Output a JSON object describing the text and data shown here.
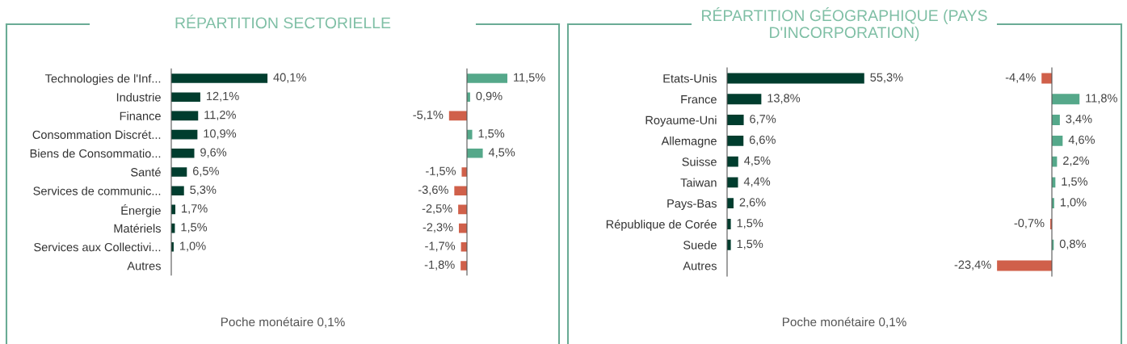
{
  "chart_data": [
    {
      "type": "bar",
      "orientation": "horizontal",
      "title": "RÉPARTITION SECTORIELLE",
      "annotations": [
        "Poche monétaire 0,1%"
      ],
      "categories": [
        "Technologies de l'Inf...",
        "Industrie",
        "Finance",
        "Consommation Discrét...",
        "Biens de Consommatio...",
        "Santé",
        "Services de communic...",
        "Énergie",
        "Matériels",
        "Services aux Collectivi...",
        "Autres"
      ],
      "values": [
        40.1,
        12.1,
        11.2,
        10.9,
        9.6,
        6.5,
        5.3,
        1.7,
        1.5,
        1.0,
        null
      ],
      "value_labels": [
        "40,1%",
        "12,1%",
        "11,2%",
        "10,9%",
        "9,6%",
        "6,5%",
        "5,3%",
        "1,7%",
        "1,5%",
        "1,0%",
        null
      ],
      "color": "#003d2e"
    },
    {
      "type": "bar",
      "orientation": "horizontal",
      "categories": [
        null,
        null,
        null,
        null,
        null,
        null,
        null,
        null,
        null,
        null,
        null
      ],
      "values": [
        11.5,
        0.9,
        -5.1,
        1.5,
        4.5,
        -1.5,
        -3.6,
        -2.5,
        -2.3,
        -1.7,
        -1.8
      ],
      "value_labels": [
        "11,5%",
        "0,9%",
        "-5,1%",
        "1,5%",
        "4,5%",
        "-1,5%",
        "-3,6%",
        "-2,5%",
        "-2,3%",
        "-1,7%",
        "-1,8%"
      ],
      "colors": [
        "#55a88a",
        "#55a88a",
        "#d0604a",
        "#55a88a",
        "#55a88a",
        "#d0604a",
        "#d0604a",
        "#d0604a",
        "#d0604a",
        "#d0604a",
        "#d0604a"
      ]
    },
    {
      "type": "bar",
      "orientation": "horizontal",
      "title": "RÉPARTITION GÉOGRAPHIQUE (PAYS\nD'INCORPORATION)",
      "annotations": [
        "Poche monétaire 0,1%"
      ],
      "categories": [
        "Etats-Unis",
        "France",
        "Royaume-Uni",
        "Allemagne",
        "Suisse",
        "Taiwan",
        "Pays-Bas",
        "République de Corée",
        "Suede",
        "Autres"
      ],
      "values": [
        55.3,
        13.8,
        6.7,
        6.6,
        4.5,
        4.4,
        2.6,
        1.5,
        1.5,
        null
      ],
      "value_labels": [
        "55,3%",
        "13,8%",
        "6,7%",
        "6,6%",
        "4,5%",
        "4,4%",
        "2,6%",
        "1,5%",
        "1,5%",
        null
      ],
      "color": "#003d2e"
    },
    {
      "type": "bar",
      "orientation": "horizontal",
      "categories": [
        null,
        null,
        null,
        null,
        null,
        null,
        null,
        null,
        null,
        null
      ],
      "values": [
        -4.4,
        11.8,
        3.4,
        4.6,
        2.2,
        1.5,
        1.0,
        -0.7,
        0.8,
        -23.4
      ],
      "value_labels": [
        "-4,4%",
        "11,8%",
        "3,4%",
        "4,6%",
        "2,2%",
        "1,5%",
        "1,0%",
        "-0,7%",
        "0,8%",
        "-23,4%"
      ],
      "colors": [
        "#d0604a",
        "#55a88a",
        "#55a88a",
        "#55a88a",
        "#55a88a",
        "#55a88a",
        "#55a88a",
        "#d0604a",
        "#55a88a",
        "#d0604a"
      ]
    }
  ]
}
